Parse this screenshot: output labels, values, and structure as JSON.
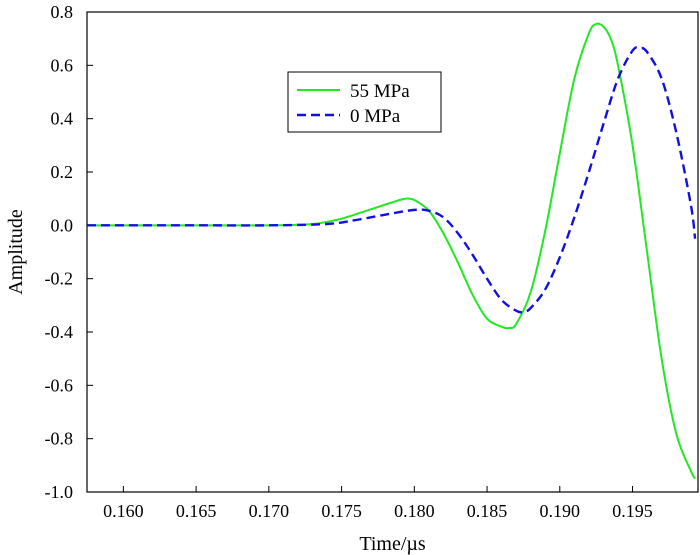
{
  "chart_data": {
    "type": "line",
    "title": "",
    "xlabel": "Time/µs",
    "ylabel": "Amplitude",
    "xlim": [
      0.1575,
      0.1995
    ],
    "ylim": [
      -1.0,
      0.8
    ],
    "xticks": [
      0.16,
      0.165,
      0.17,
      0.175,
      0.18,
      0.185,
      0.19,
      0.195
    ],
    "xtick_labels": [
      "0.160",
      "0.165",
      "0.170",
      "0.175",
      "0.180",
      "0.185",
      "0.190",
      "0.195"
    ],
    "yticks": [
      0.8,
      0.6,
      0.4,
      0.2,
      0.0,
      -0.2,
      -0.4,
      -0.6,
      -0.8,
      -1.0
    ],
    "ytick_labels": [
      "0.8",
      "0.6",
      "0.4",
      "0.2",
      "0.0",
      "-0.2",
      "-0.4",
      "-0.6",
      "-0.8",
      "-1.0"
    ],
    "grid": false,
    "legend_position": "top-center",
    "series": [
      {
        "name": "55 MPa",
        "color": "#22e822",
        "dash": "solid",
        "x": [
          0.1575,
          0.16,
          0.165,
          0.17,
          0.173,
          0.175,
          0.177,
          0.179,
          0.1795,
          0.18,
          0.181,
          0.182,
          0.183,
          0.184,
          0.185,
          0.186,
          0.1865,
          0.187,
          0.188,
          0.189,
          0.19,
          0.191,
          0.192,
          0.1925,
          0.193,
          0.1935,
          0.194,
          0.195,
          0.196,
          0.197,
          0.198,
          0.199,
          0.1993
        ],
        "y": [
          0.0,
          0.0,
          0.0,
          0.0,
          0.005,
          0.025,
          0.06,
          0.095,
          0.1,
          0.095,
          0.055,
          -0.03,
          -0.14,
          -0.26,
          -0.35,
          -0.38,
          -0.385,
          -0.37,
          -0.25,
          -0.02,
          0.27,
          0.55,
          0.72,
          0.755,
          0.745,
          0.7,
          0.6,
          0.3,
          -0.1,
          -0.5,
          -0.78,
          -0.92,
          -0.95
        ]
      },
      {
        "name": "0 MPa",
        "color": "#1010e0",
        "dash": "dashed",
        "x": [
          0.1575,
          0.16,
          0.165,
          0.17,
          0.174,
          0.176,
          0.178,
          0.18,
          0.181,
          0.182,
          0.183,
          0.184,
          0.185,
          0.186,
          0.187,
          0.1875,
          0.188,
          0.189,
          0.19,
          0.191,
          0.192,
          0.193,
          0.194,
          0.195,
          0.1955,
          0.196,
          0.197,
          0.198,
          0.199,
          0.1993
        ],
        "y": [
          0.0,
          0.0,
          0.0,
          0.0,
          0.005,
          0.02,
          0.04,
          0.058,
          0.055,
          0.03,
          -0.03,
          -0.11,
          -0.2,
          -0.28,
          -0.32,
          -0.325,
          -0.31,
          -0.24,
          -0.12,
          0.03,
          0.2,
          0.38,
          0.55,
          0.655,
          0.665,
          0.65,
          0.55,
          0.35,
          0.08,
          -0.05
        ]
      }
    ]
  }
}
